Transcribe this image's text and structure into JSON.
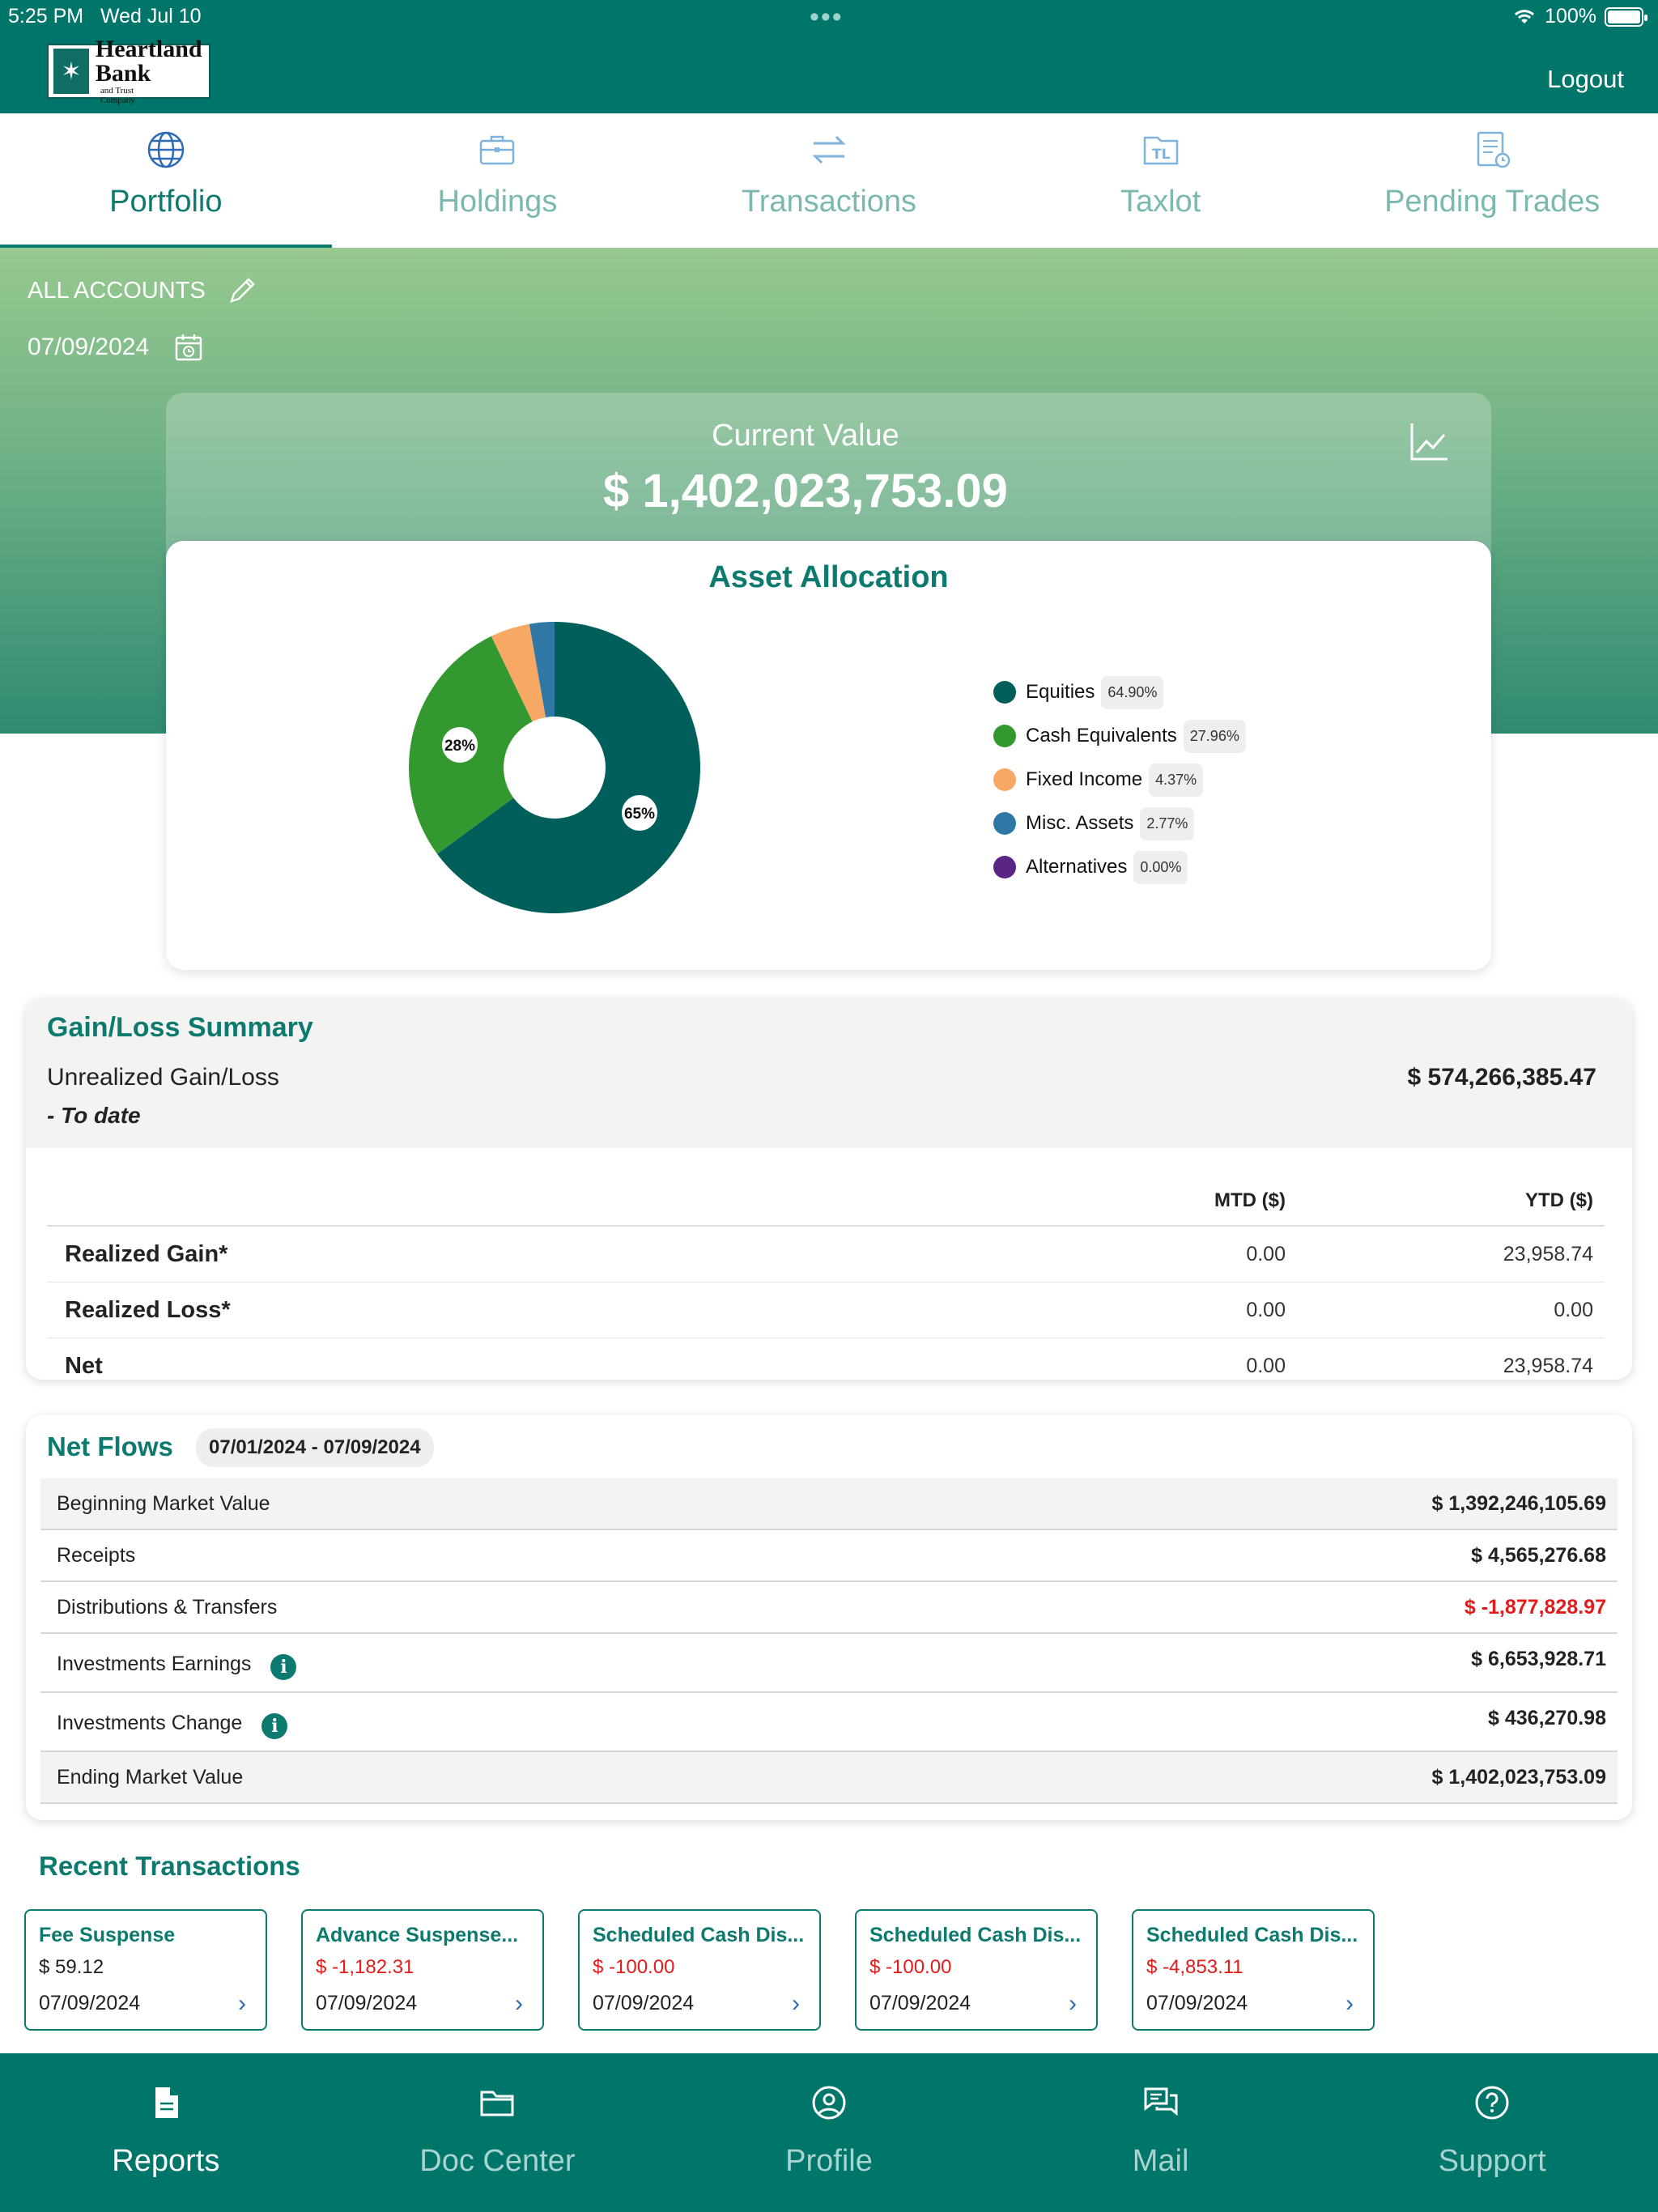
{
  "status_bar": {
    "time": "5:25 PM",
    "date": "Wed Jul 10",
    "battery": "100%"
  },
  "header": {
    "logo": {
      "line1": "Heartland",
      "line2": "Bank",
      "tagline": "and Trust Company"
    },
    "logout": "Logout"
  },
  "tabs": [
    {
      "label": "Portfolio",
      "icon": "globe-icon",
      "active": true
    },
    {
      "label": "Holdings",
      "icon": "briefcase-icon",
      "active": false
    },
    {
      "label": "Transactions",
      "icon": "transfer-arrows-icon",
      "active": false
    },
    {
      "label": "Taxlot",
      "icon": "taxlot-icon",
      "active": false
    },
    {
      "label": "Pending Trades",
      "icon": "document-clock-icon",
      "active": false
    }
  ],
  "account": {
    "label": "ALL ACCOUNTS",
    "date": "07/09/2024"
  },
  "current_value": {
    "label": "Current Value",
    "amount": "$ 1,402,023,753.09"
  },
  "allocation": {
    "title": "Asset Allocation",
    "slice_labels": {
      "cash": "28%",
      "equities": "65%"
    }
  },
  "chart_data": {
    "type": "pie",
    "title": "Asset Allocation",
    "donut": true,
    "start_angle_deg": 0,
    "direction": "clockwise",
    "series": [
      {
        "name": "Equities",
        "value": 64.9,
        "label": "64.90%",
        "color": "#005f5a"
      },
      {
        "name": "Cash Equivalents",
        "value": 27.96,
        "label": "27.96%",
        "color": "#33982f"
      },
      {
        "name": "Fixed Income",
        "value": 4.37,
        "label": "4.37%",
        "color": "#f7a865"
      },
      {
        "name": "Misc. Assets",
        "value": 2.77,
        "label": "2.77%",
        "color": "#2f78a6"
      },
      {
        "name": "Alternatives",
        "value": 0.0,
        "label": "0.00%",
        "color": "#5b2586"
      }
    ],
    "legend": "right"
  },
  "gain_loss": {
    "title": "Gain/Loss Summary",
    "unrealized_label": "Unrealized Gain/Loss",
    "to_date": "- To date",
    "unrealized_value": "$ 574,266,385.47",
    "col_mtd": "MTD ($)",
    "col_ytd": "YTD ($)",
    "rows": [
      {
        "label": "Realized Gain*",
        "mtd": "0.00",
        "ytd": "23,958.74"
      },
      {
        "label": "Realized Loss*",
        "mtd": "0.00",
        "ytd": "0.00"
      },
      {
        "label": "Net",
        "mtd": "0.00",
        "ytd": "23,958.74"
      }
    ]
  },
  "net_flows": {
    "title": "Net Flows",
    "range": "07/01/2024 - 07/09/2024",
    "rows": [
      {
        "label": "Beginning Market Value",
        "value": "$ 1,392,246,105.69"
      },
      {
        "label": "Receipts",
        "value": "$ 4,565,276.68"
      },
      {
        "label": "Distributions & Transfers",
        "value": "$ -1,877,828.97"
      },
      {
        "label": "Investments Earnings",
        "value": "$ 6,653,928.71"
      },
      {
        "label": "Investments Change",
        "value": "$ 436,270.98"
      },
      {
        "label": "Ending Market Value",
        "value": "$ 1,402,023,753.09"
      }
    ]
  },
  "recent": {
    "title": "Recent Transactions",
    "items": [
      {
        "name": "Fee Suspense",
        "amount": "$ 59.12",
        "date": "07/09/2024",
        "negative": false
      },
      {
        "name": "Advance Suspense...",
        "amount": "$ -1,182.31",
        "date": "07/09/2024",
        "negative": true
      },
      {
        "name": "Scheduled Cash Dis...",
        "amount": "$ -100.00",
        "date": "07/09/2024",
        "negative": true
      },
      {
        "name": "Scheduled Cash Dis...",
        "amount": "$ -100.00",
        "date": "07/09/2024",
        "negative": true
      },
      {
        "name": "Scheduled Cash Dis...",
        "amount": "$ -4,853.11",
        "date": "07/09/2024",
        "negative": true
      }
    ]
  },
  "bottom_nav": [
    {
      "label": "Reports",
      "icon": "document-icon",
      "active": true
    },
    {
      "label": "Doc Center",
      "icon": "folder-icon",
      "active": false
    },
    {
      "label": "Profile",
      "icon": "user-circle-icon",
      "active": false
    },
    {
      "label": "Mail",
      "icon": "chat-bubbles-icon",
      "active": false
    },
    {
      "label": "Support",
      "icon": "help-circle-icon",
      "active": false
    }
  ]
}
